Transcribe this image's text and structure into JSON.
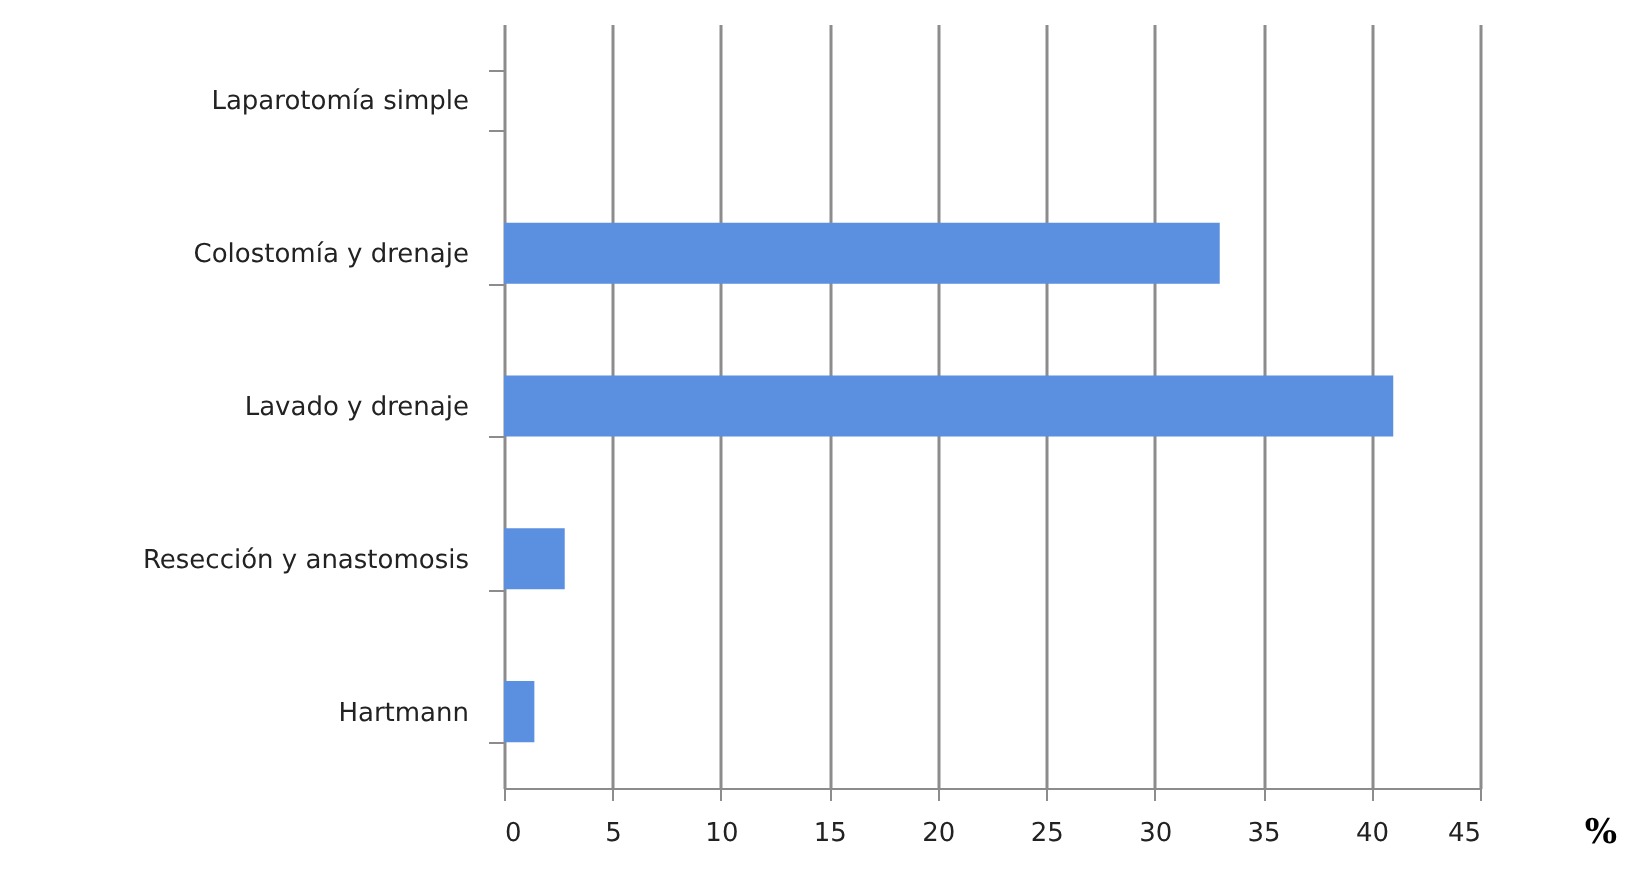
{
  "chart_data": {
    "type": "bar",
    "orientation": "horizontal",
    "xlabel": "%",
    "categories": [
      "Laparotomía simple",
      "Colostomía y drenaje",
      "Lavado y drenaje",
      "Resección y anastomosis",
      "Hartmann"
    ],
    "values": [
      0,
      33,
      41,
      2.8,
      1.4
    ],
    "color": "#5b8fdf",
    "xlim": [
      0,
      45
    ],
    "xticks": [
      0,
      5,
      10,
      15,
      20,
      25,
      30,
      35,
      40,
      45
    ],
    "grid": "x"
  }
}
